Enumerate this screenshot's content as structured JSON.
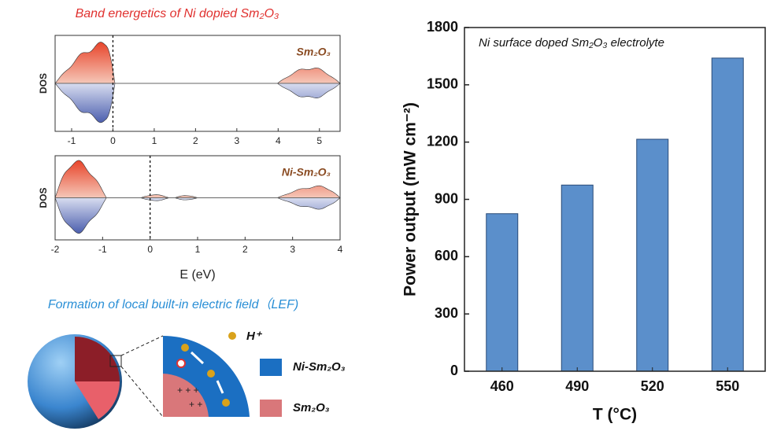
{
  "figure": {
    "dos_title": "Band energetics of Ni dopied Sm₂O₃",
    "lef_title": "Formation of local built-in electric field（LEF)",
    "h_label": "H⁺",
    "legend": [
      {
        "label": "Ni-Sm₂O₃",
        "color": "#1b6fc2"
      },
      {
        "label": "Sm₂O₃",
        "color": "#d9777a"
      }
    ]
  },
  "chart_data": [
    {
      "type": "area",
      "ylabel": "DOS",
      "label": "Sm₂O₃",
      "xlim": [
        -1.4,
        5.5
      ],
      "xticks": [
        -1,
        0,
        1,
        2,
        3,
        4,
        5
      ],
      "vline": 0
    },
    {
      "type": "area",
      "ylabel": "DOS",
      "label": "Ni-Sm₂O₃",
      "xlim": [
        -2,
        4
      ],
      "xticks": [
        -2,
        -1,
        0,
        1,
        2,
        3,
        4
      ],
      "vline": 0,
      "xlabel": "E (eV)"
    },
    {
      "type": "bar",
      "annotation": "Ni surface doped Sm₂O₃ electrolyte",
      "ylabel": "Power output (mW cm⁻²)",
      "xlabel": "T (°C)",
      "categories": [
        "460",
        "490",
        "520",
        "550"
      ],
      "values": [
        825,
        975,
        1215,
        1640
      ],
      "color": "#5b8fcb",
      "ylim": [
        0,
        1800
      ],
      "yticks": [
        0,
        300,
        600,
        900,
        1200,
        1500,
        1800
      ]
    }
  ]
}
